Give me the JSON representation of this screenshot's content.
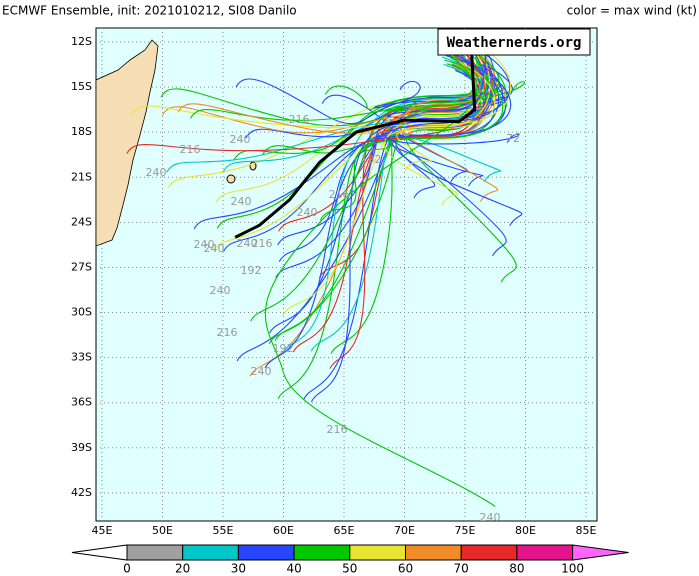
{
  "header": {
    "title": "ECMWF Ensemble, init: 2021010212, SI08 Danilo",
    "legend_title": "color = max wind (kt)"
  },
  "map": {
    "watermark": "Weathernerds.org",
    "lon_ticks": [
      {
        "value": 45,
        "label": "45E"
      },
      {
        "value": 50,
        "label": "50E"
      },
      {
        "value": 55,
        "label": "55E"
      },
      {
        "value": 60,
        "label": "60E"
      },
      {
        "value": 65,
        "label": "65E"
      },
      {
        "value": 70,
        "label": "70E"
      },
      {
        "value": 75,
        "label": "75E"
      },
      {
        "value": 80,
        "label": "80E"
      },
      {
        "value": 85,
        "label": "85E"
      }
    ],
    "lat_ticks": [
      {
        "value": -12,
        "label": "12S"
      },
      {
        "value": -15,
        "label": "15S"
      },
      {
        "value": -18,
        "label": "18S"
      },
      {
        "value": -21,
        "label": "21S"
      },
      {
        "value": -24,
        "label": "24S"
      },
      {
        "value": -27,
        "label": "27S"
      },
      {
        "value": -30,
        "label": "30S"
      },
      {
        "value": -33,
        "label": "33S"
      },
      {
        "value": -36,
        "label": "36S"
      },
      {
        "value": -39,
        "label": "39S"
      },
      {
        "value": -42,
        "label": "42S"
      }
    ],
    "track_labels": [
      "240",
      "216",
      "240",
      "216",
      "240",
      "240",
      "240",
      "240",
      "216",
      "192",
      "240",
      "216",
      "192",
      "240",
      "216",
      "240",
      "216",
      "240",
      "192",
      "72"
    ]
  },
  "colorbar": {
    "ticks": [
      0,
      20,
      30,
      40,
      50,
      60,
      70,
      80,
      100
    ],
    "colors": [
      "#a0a0a0",
      "#00c8c8",
      "#2846ff",
      "#00c800",
      "#e6e632",
      "#f08c28",
      "#e62828",
      "#e6148c"
    ],
    "under_color": "#ffffff",
    "over_color": "#ff64ff"
  }
}
